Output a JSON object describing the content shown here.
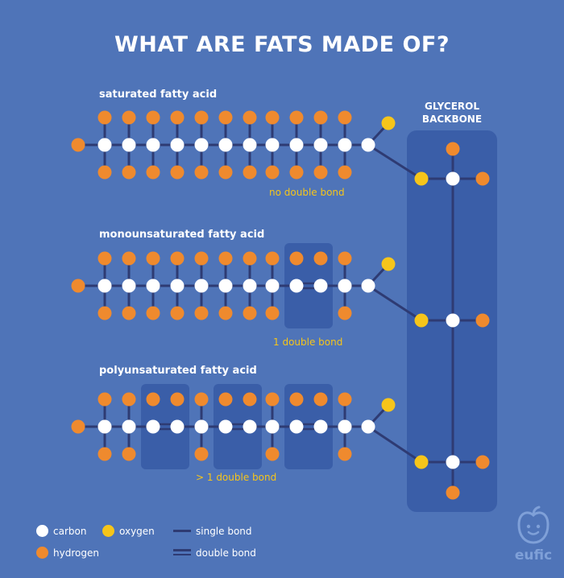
{
  "title": "WHAT ARE FATS MADE OF?",
  "acids": [
    {
      "label": "saturated fatty acid",
      "note": "no double bond",
      "double_bond_count": 0
    },
    {
      "label": "monounsaturated fatty acid",
      "note": "1 double bond",
      "double_bond_count": 1
    },
    {
      "label": "polyunsaturated fatty acid",
      "note": "> 1 double bond",
      "double_bond_count": 3
    }
  ],
  "glycerol": {
    "line1": "GLYCEROL",
    "line2": "BACKBONE"
  },
  "legend": {
    "carbon": "carbon",
    "oxygen": "oxygen",
    "hydrogen": "hydrogen",
    "single_bond": "single bond",
    "double_bond": "double bond"
  },
  "logo_text": "eufic",
  "colors": {
    "background": "#4f74b8",
    "panel": "#3a5ea8",
    "bond": "#2e3b73",
    "carbon": "#ffffff",
    "hydrogen": "#ef8a2e",
    "oxygen": "#f6c51a"
  }
}
